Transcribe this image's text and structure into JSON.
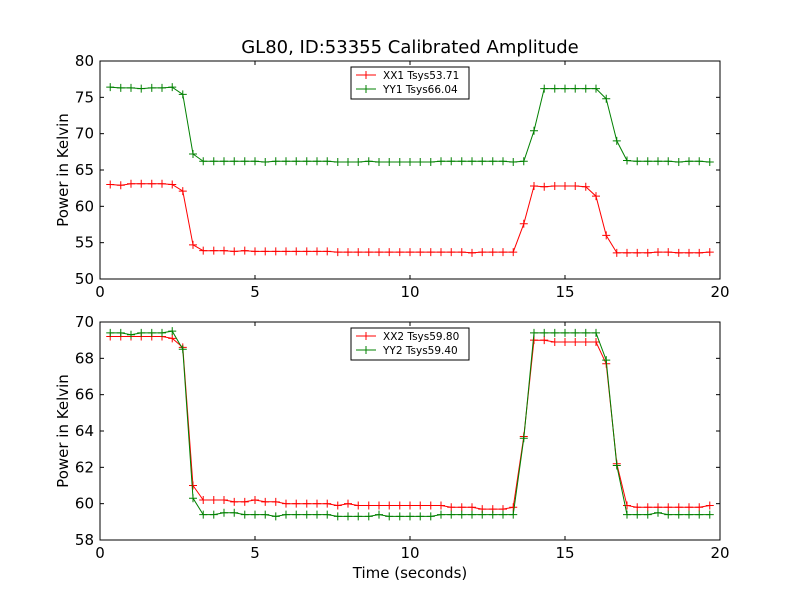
{
  "chart_data": [
    {
      "type": "line",
      "title": "GL80, ID:53355 Calibrated Amplitude",
      "xlabel": "",
      "ylabel": "Power in Kelvin",
      "xlim": [
        0,
        20
      ],
      "ylim": [
        50,
        80
      ],
      "xticks": [
        "0",
        "5",
        "10",
        "15",
        "20"
      ],
      "yticks": [
        "50",
        "55",
        "60",
        "65",
        "70",
        "75",
        "80"
      ],
      "legend_position": "top-center",
      "x": [
        0.33,
        0.67,
        1.0,
        1.33,
        1.67,
        2.0,
        2.33,
        2.67,
        3.0,
        3.33,
        3.67,
        4.0,
        4.33,
        4.67,
        5.0,
        5.33,
        5.67,
        6.0,
        6.33,
        6.67,
        7.0,
        7.33,
        7.67,
        8.0,
        8.33,
        8.67,
        9.0,
        9.33,
        9.67,
        10.0,
        10.33,
        10.67,
        11.0,
        11.33,
        11.67,
        12.0,
        12.33,
        12.67,
        13.0,
        13.33,
        13.67,
        14.0,
        14.33,
        14.67,
        15.0,
        15.33,
        15.67,
        16.0,
        16.33,
        16.67,
        17.0,
        17.33,
        17.67,
        18.0,
        18.33,
        18.67,
        19.0,
        19.33,
        19.67
      ],
      "series": [
        {
          "name": "XX1 Tsys53.71",
          "color": "#ff0000",
          "values": [
            63.0,
            62.9,
            63.1,
            63.1,
            63.1,
            63.1,
            63.0,
            62.1,
            54.7,
            53.9,
            53.9,
            53.9,
            53.8,
            53.9,
            53.8,
            53.8,
            53.8,
            53.8,
            53.8,
            53.8,
            53.8,
            53.8,
            53.7,
            53.7,
            53.7,
            53.7,
            53.7,
            53.7,
            53.7,
            53.7,
            53.7,
            53.7,
            53.7,
            53.7,
            53.7,
            53.6,
            53.7,
            53.7,
            53.7,
            53.7,
            57.6,
            62.8,
            62.7,
            62.8,
            62.8,
            62.8,
            62.7,
            61.4,
            56.0,
            53.6,
            53.6,
            53.6,
            53.6,
            53.7,
            53.7,
            53.6,
            53.6,
            53.6,
            53.7
          ]
        },
        {
          "name": "YY1 Tsys66.04",
          "color": "#008000",
          "values": [
            76.4,
            76.3,
            76.3,
            76.2,
            76.3,
            76.3,
            76.4,
            75.4,
            67.2,
            66.2,
            66.2,
            66.2,
            66.2,
            66.2,
            66.2,
            66.1,
            66.2,
            66.2,
            66.2,
            66.2,
            66.2,
            66.2,
            66.1,
            66.1,
            66.1,
            66.2,
            66.1,
            66.1,
            66.1,
            66.1,
            66.1,
            66.1,
            66.2,
            66.2,
            66.2,
            66.2,
            66.2,
            66.2,
            66.2,
            66.1,
            66.2,
            70.4,
            76.2,
            76.2,
            76.2,
            76.2,
            76.2,
            76.2,
            74.8,
            69.0,
            66.3,
            66.2,
            66.2,
            66.2,
            66.2,
            66.1,
            66.2,
            66.2,
            66.1
          ]
        }
      ]
    },
    {
      "type": "line",
      "title": "",
      "xlabel": "Time (seconds)",
      "ylabel": "Power in Kelvin",
      "xlim": [
        0,
        20
      ],
      "ylim": [
        58,
        70
      ],
      "xticks": [
        "0",
        "5",
        "10",
        "15",
        "20"
      ],
      "yticks": [
        "58",
        "60",
        "62",
        "64",
        "66",
        "68",
        "70"
      ],
      "legend_position": "top-center",
      "x": [
        0.33,
        0.67,
        1.0,
        1.33,
        1.67,
        2.0,
        2.33,
        2.67,
        3.0,
        3.33,
        3.67,
        4.0,
        4.33,
        4.67,
        5.0,
        5.33,
        5.67,
        6.0,
        6.33,
        6.67,
        7.0,
        7.33,
        7.67,
        8.0,
        8.33,
        8.67,
        9.0,
        9.33,
        9.67,
        10.0,
        10.33,
        10.67,
        11.0,
        11.33,
        11.67,
        12.0,
        12.33,
        12.67,
        13.0,
        13.33,
        13.67,
        14.0,
        14.33,
        14.67,
        15.0,
        15.33,
        15.67,
        16.0,
        16.33,
        16.67,
        17.0,
        17.33,
        17.67,
        18.0,
        18.33,
        18.67,
        19.0,
        19.33,
        19.67
      ],
      "series": [
        {
          "name": "XX2 Tsys59.80",
          "color": "#ff0000",
          "values": [
            69.2,
            69.2,
            69.2,
            69.2,
            69.2,
            69.2,
            69.1,
            68.6,
            61.0,
            60.2,
            60.2,
            60.2,
            60.1,
            60.1,
            60.2,
            60.1,
            60.1,
            60.0,
            60.0,
            60.0,
            60.0,
            60.0,
            59.9,
            60.0,
            59.9,
            59.9,
            59.9,
            59.9,
            59.9,
            59.9,
            59.9,
            59.9,
            59.9,
            59.8,
            59.8,
            59.8,
            59.7,
            59.7,
            59.7,
            59.8,
            63.7,
            69.0,
            69.0,
            68.9,
            68.9,
            68.9,
            68.9,
            68.9,
            67.7,
            62.2,
            59.9,
            59.8,
            59.8,
            59.8,
            59.8,
            59.8,
            59.8,
            59.8,
            59.9
          ]
        },
        {
          "name": "YY2 Tsys59.40",
          "color": "#008000",
          "values": [
            69.4,
            69.4,
            69.3,
            69.4,
            69.4,
            69.4,
            69.5,
            68.5,
            60.3,
            59.4,
            59.4,
            59.5,
            59.5,
            59.4,
            59.4,
            59.4,
            59.3,
            59.4,
            59.4,
            59.4,
            59.4,
            59.4,
            59.3,
            59.3,
            59.3,
            59.3,
            59.4,
            59.3,
            59.3,
            59.3,
            59.3,
            59.3,
            59.4,
            59.4,
            59.4,
            59.4,
            59.4,
            59.4,
            59.4,
            59.4,
            63.6,
            69.4,
            69.4,
            69.4,
            69.4,
            69.4,
            69.4,
            69.4,
            67.9,
            62.1,
            59.4,
            59.4,
            59.4,
            59.5,
            59.4,
            59.4,
            59.4,
            59.4,
            59.4
          ]
        }
      ]
    }
  ]
}
